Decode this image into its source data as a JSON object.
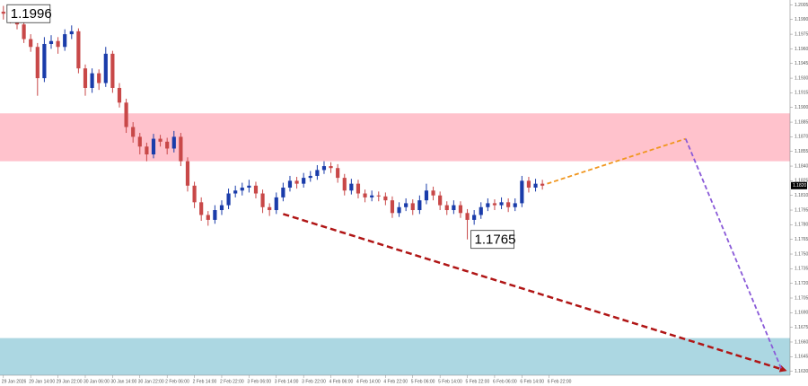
{
  "chart_data": {
    "type": "candlestick",
    "colors": {
      "up": "#1a3caa",
      "down": "#c84848"
    },
    "ohlc": [
      [
        1.1998,
        1.2004,
        1.199,
        1.1996
      ],
      [
        1.1996,
        1.1999,
        1.1986,
        1.199
      ],
      [
        1.199,
        1.1993,
        1.198,
        1.1985
      ],
      [
        1.1985,
        1.1988,
        1.1966,
        1.197
      ],
      [
        1.197,
        1.1975,
        1.1957,
        1.1962
      ],
      [
        1.1962,
        1.1966,
        1.1912,
        1.193
      ],
      [
        1.193,
        1.1972,
        1.1926,
        1.1965
      ],
      [
        1.1965,
        1.1974,
        1.196,
        1.1968
      ],
      [
        1.1968,
        1.1972,
        1.1955,
        1.1962
      ],
      [
        1.1962,
        1.198,
        1.1958,
        1.1975
      ],
      [
        1.1975,
        1.1984,
        1.197,
        1.1978
      ],
      [
        1.1978,
        1.1981,
        1.1935,
        1.194
      ],
      [
        1.194,
        1.1944,
        1.1912,
        1.192
      ],
      [
        1.192,
        1.194,
        1.1915,
        1.1935
      ],
      [
        1.1935,
        1.1939,
        1.1918,
        1.1925
      ],
      [
        1.1925,
        1.1962,
        1.1921,
        1.1955
      ],
      [
        1.1955,
        1.1958,
        1.1915,
        1.192
      ],
      [
        1.192,
        1.1925,
        1.19,
        1.1905
      ],
      [
        1.1905,
        1.1909,
        1.1874,
        1.188
      ],
      [
        1.188,
        1.1885,
        1.1864,
        1.187
      ],
      [
        1.187,
        1.1874,
        1.1852,
        1.186
      ],
      [
        1.186,
        1.1864,
        1.1845,
        1.1852
      ],
      [
        1.1852,
        1.1873,
        1.1848,
        1.1868
      ],
      [
        1.1868,
        1.1872,
        1.186,
        1.1865
      ],
      [
        1.1865,
        1.1869,
        1.1852,
        1.1858
      ],
      [
        1.1858,
        1.1876,
        1.1854,
        1.187
      ],
      [
        1.187,
        1.1874,
        1.184,
        1.1845
      ],
      [
        1.1845,
        1.1849,
        1.1814,
        1.182
      ],
      [
        1.182,
        1.1824,
        1.1797,
        1.1803
      ],
      [
        1.1803,
        1.1808,
        1.1784,
        1.179
      ],
      [
        1.179,
        1.1794,
        1.1779,
        1.1785
      ],
      [
        1.1785,
        1.18,
        1.1781,
        1.1795
      ],
      [
        1.1795,
        1.1805,
        1.179,
        1.18
      ],
      [
        1.18,
        1.1817,
        1.1796,
        1.1812
      ],
      [
        1.1812,
        1.182,
        1.1808,
        1.1815
      ],
      [
        1.1815,
        1.1823,
        1.181,
        1.1818
      ],
      [
        1.1818,
        1.1826,
        1.1813,
        1.182
      ],
      [
        1.182,
        1.1824,
        1.1807,
        1.1812
      ],
      [
        1.1812,
        1.1816,
        1.1792,
        1.1798
      ],
      [
        1.1798,
        1.1802,
        1.1789,
        1.1795
      ],
      [
        1.1795,
        1.1813,
        1.1791,
        1.1808
      ],
      [
        1.1808,
        1.1823,
        1.1804,
        1.1818
      ],
      [
        1.1818,
        1.183,
        1.1814,
        1.1825
      ],
      [
        1.1825,
        1.1829,
        1.1817,
        1.1822
      ],
      [
        1.1822,
        1.1833,
        1.1818,
        1.1828
      ],
      [
        1.1828,
        1.1835,
        1.1824,
        1.183
      ],
      [
        1.183,
        1.1841,
        1.1826,
        1.1836
      ],
      [
        1.1836,
        1.1845,
        1.1832,
        1.184
      ],
      [
        1.184,
        1.1844,
        1.1833,
        1.1838
      ],
      [
        1.1838,
        1.1842,
        1.1823,
        1.1828
      ],
      [
        1.1828,
        1.1832,
        1.181,
        1.1815
      ],
      [
        1.1815,
        1.1827,
        1.1811,
        1.1822
      ],
      [
        1.1822,
        1.1826,
        1.1807,
        1.1812
      ],
      [
        1.1812,
        1.1816,
        1.1803,
        1.1808
      ],
      [
        1.1808,
        1.1815,
        1.1804,
        1.181
      ],
      [
        1.181,
        1.1814,
        1.1804,
        1.1809
      ],
      [
        1.1809,
        1.1813,
        1.18,
        1.1805
      ],
      [
        1.1805,
        1.1809,
        1.1787,
        1.1792
      ],
      [
        1.1792,
        1.1803,
        1.1788,
        1.1798
      ],
      [
        1.1798,
        1.1807,
        1.1794,
        1.1802
      ],
      [
        1.1802,
        1.1806,
        1.179,
        1.1795
      ],
      [
        1.1795,
        1.181,
        1.1791,
        1.1805
      ],
      [
        1.1805,
        1.1822,
        1.1801,
        1.1815
      ],
      [
        1.1815,
        1.1819,
        1.1805,
        1.181
      ],
      [
        1.181,
        1.1814,
        1.1795,
        1.18
      ],
      [
        1.18,
        1.1804,
        1.179,
        1.1795
      ],
      [
        1.1795,
        1.1805,
        1.1791,
        1.18
      ],
      [
        1.18,
        1.1804,
        1.1787,
        1.1792
      ],
      [
        1.1792,
        1.1796,
        1.1765,
        1.1785
      ],
      [
        1.1785,
        1.1795,
        1.178,
        1.179
      ],
      [
        1.179,
        1.1803,
        1.1786,
        1.1798
      ],
      [
        1.1798,
        1.1807,
        1.1794,
        1.1802
      ],
      [
        1.1802,
        1.1806,
        1.1795,
        1.18
      ],
      [
        1.18,
        1.1808,
        1.1796,
        1.1803
      ],
      [
        1.1803,
        1.1807,
        1.1793,
        1.1798
      ],
      [
        1.1798,
        1.1807,
        1.1794,
        1.1802
      ],
      [
        1.1802,
        1.183,
        1.1798,
        1.1825
      ],
      [
        1.1825,
        1.1829,
        1.1813,
        1.1818
      ],
      [
        1.1818,
        1.1827,
        1.1814,
        1.1822
      ],
      [
        1.1822,
        1.1826,
        1.1816,
        1.182
      ]
    ],
    "xlim": [
      -0.5,
      115.3
    ],
    "ylim": [
      1.1626,
      1.201
    ],
    "xticks": [
      {
        "value": 0,
        "label": "29 Jan 2026"
      },
      {
        "value": 4,
        "label": "29 Jan 14:00"
      },
      {
        "value": 8,
        "label": "29 Jan 22:00"
      },
      {
        "value": 12,
        "label": "30 Jan 06:00"
      },
      {
        "value": 16,
        "label": "30 Jan 14:00"
      },
      {
        "value": 20,
        "label": "30 Jan 22:00"
      },
      {
        "value": 24,
        "label": "2 Feb 06:00"
      },
      {
        "value": 28,
        "label": "2 Feb 14:00"
      },
      {
        "value": 32,
        "label": "2 Feb 22:00"
      },
      {
        "value": 36,
        "label": "3 Feb 06:00"
      },
      {
        "value": 40,
        "label": "3 Feb 14:00"
      },
      {
        "value": 44,
        "label": "3 Feb 22:00"
      },
      {
        "value": 48,
        "label": "4 Feb 06:00"
      },
      {
        "value": 52,
        "label": "4 Feb 14:00"
      },
      {
        "value": 56,
        "label": "4 Feb 22:00"
      },
      {
        "value": 60,
        "label": "5 Feb 06:00"
      },
      {
        "value": 64,
        "label": "5 Feb 14:00"
      },
      {
        "value": 68,
        "label": "5 Feb 22:00"
      },
      {
        "value": 72,
        "label": "6 Feb 06:00"
      },
      {
        "value": 76,
        "label": "6 Feb 14:00"
      },
      {
        "value": 80,
        "label": "6 Feb 22:00"
      }
    ],
    "yticks": [
      {
        "value": 1.2005,
        "label": "1.2005"
      },
      {
        "value": 1.199,
        "label": "1.1990"
      },
      {
        "value": 1.1975,
        "label": "1.1975"
      },
      {
        "value": 1.196,
        "label": "1.1960"
      },
      {
        "value": 1.1945,
        "label": "1.1945"
      },
      {
        "value": 1.193,
        "label": "1.1930"
      },
      {
        "value": 1.1915,
        "label": "1.1915"
      },
      {
        "value": 1.19,
        "label": "1.1900"
      },
      {
        "value": 1.1885,
        "label": "1.1885"
      },
      {
        "value": 1.187,
        "label": "1.1870"
      },
      {
        "value": 1.1855,
        "label": "1.1855"
      },
      {
        "value": 1.184,
        "label": "1.1840"
      },
      {
        "value": 1.1825,
        "label": "1.1825"
      },
      {
        "value": 1.181,
        "label": "1.1810"
      },
      {
        "value": 1.1795,
        "label": "1.1795"
      },
      {
        "value": 1.178,
        "label": "1.1780"
      },
      {
        "value": 1.1765,
        "label": "1.1765"
      },
      {
        "value": 1.175,
        "label": "1.1750"
      },
      {
        "value": 1.1735,
        "label": "1.1735"
      },
      {
        "value": 1.172,
        "label": "1.1720"
      },
      {
        "value": 1.1705,
        "label": "1.1705"
      },
      {
        "value": 1.169,
        "label": "1.1690"
      },
      {
        "value": 1.1675,
        "label": "1.1675"
      },
      {
        "value": 1.166,
        "label": "1.1660"
      },
      {
        "value": 1.1645,
        "label": "1.1645"
      },
      {
        "value": 1.163,
        "label": "1.1630"
      }
    ],
    "zones": [
      {
        "from": 1.1845,
        "to": 1.1894,
        "color": "#ffc2cc"
      },
      {
        "from": 1.1626,
        "to": 1.1664,
        "color": "#acd7e2"
      }
    ],
    "arrows": [
      {
        "from": [
          41,
          1.1791
        ],
        "to": [
          114.6,
          1.1631
        ],
        "color": "#b01515",
        "head": true
      },
      {
        "from": [
          79.7,
          1.1822
        ],
        "to": [
          100,
          1.1868
        ],
        "color": "#f0961e",
        "head": false
      },
      {
        "from": [
          100,
          1.1868
        ],
        "to": [
          114,
          1.1633
        ],
        "color": "#8a5ad8",
        "head": false
      }
    ],
    "price_labels": [
      {
        "index": 0,
        "value": 1.1996,
        "label": "1.1996"
      },
      {
        "index": 68,
        "value": 1.1765,
        "label": "1.1765"
      }
    ],
    "last_price": {
      "value": 1.182,
      "label": "1.1820"
    }
  }
}
